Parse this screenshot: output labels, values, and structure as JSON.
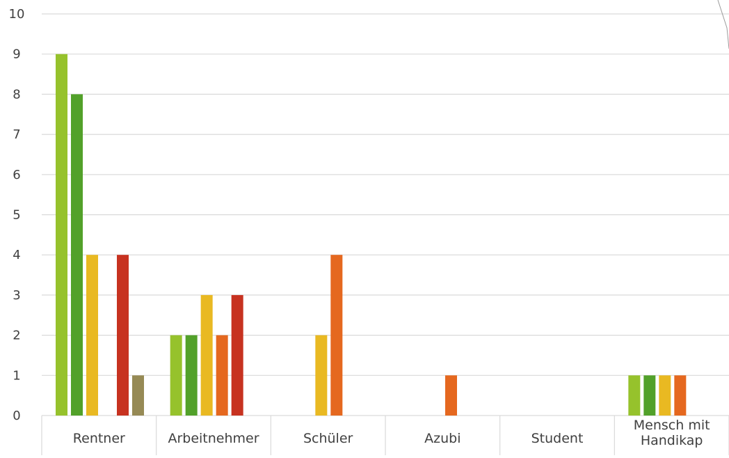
{
  "chart_data": {
    "type": "bar",
    "categories": [
      "Rentner",
      "Arbeitnehmer",
      "Schüler",
      "Azubi",
      "Student",
      "Mensch mit Handikap"
    ],
    "series": [
      {
        "values": [
          9,
          2,
          0,
          0,
          0,
          1
        ],
        "color": "#96c22c"
      },
      {
        "values": [
          8,
          2,
          0,
          0,
          0,
          1
        ],
        "color": "#52a12a"
      },
      {
        "values": [
          4,
          3,
          2,
          0,
          0,
          1
        ],
        "color": "#e9b922"
      },
      {
        "values": [
          0,
          2,
          4,
          1,
          0,
          1
        ],
        "color": "#e5681f"
      },
      {
        "values": [
          4,
          3,
          0,
          0,
          0,
          0
        ],
        "color": "#c73220"
      },
      {
        "values": [
          1,
          0,
          0,
          0,
          0,
          0
        ],
        "color": "#968a55"
      }
    ],
    "yticks": [
      "0",
      "1",
      "2",
      "3",
      "4",
      "5",
      "6",
      "7",
      "8",
      "9",
      "10"
    ],
    "ylim": [
      0,
      10
    ],
    "grid": true,
    "title": "",
    "xlabel": "",
    "ylabel": ""
  }
}
